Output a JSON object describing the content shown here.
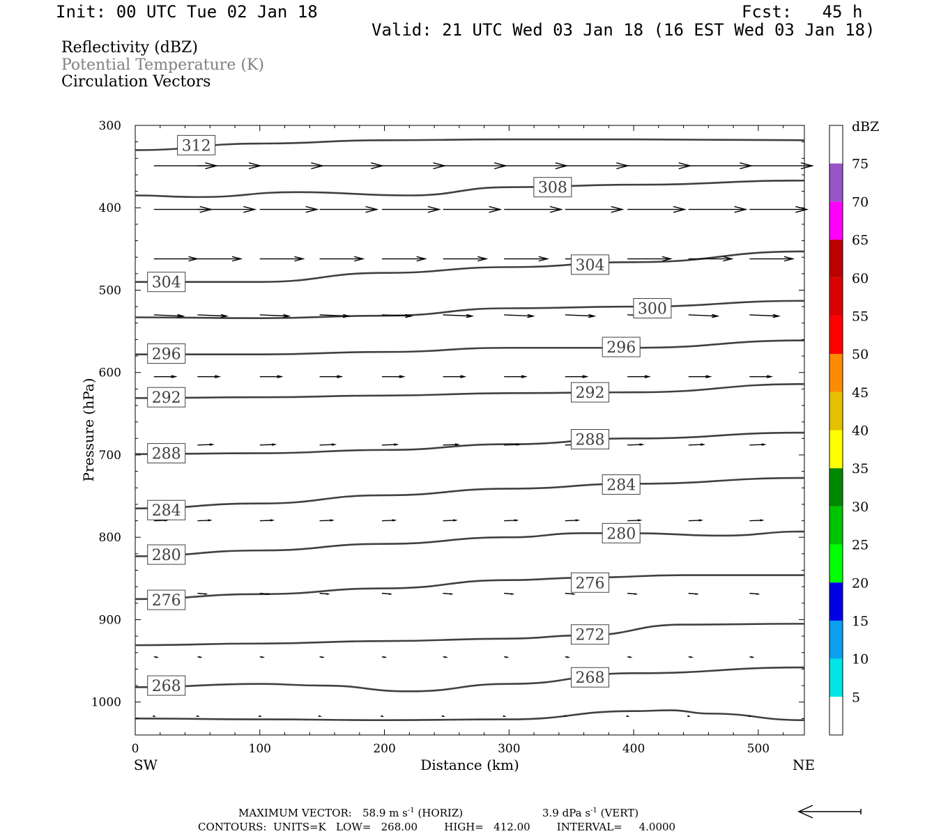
{
  "header": {
    "init": "Init: 00 UTC Tue 02 Jan 18",
    "fcst": "Fcst:   45 h",
    "valid": "Valid: 21 UTC Wed 03 Jan 18 (16 EST Wed 03 Jan 18)"
  },
  "legend_fields": [
    {
      "label": "Reflectivity (dBZ)",
      "color": "#000000"
    },
    {
      "label": "Potential Temperature (K)",
      "color": "#808080"
    },
    {
      "label": "Circulation Vectors",
      "color": "#000000"
    }
  ],
  "chart_data": {
    "type": "cross-section",
    "xlabel": "Distance (km)",
    "ylabel": "Pressure (hPa)",
    "x_left_label": "SW",
    "x_right_label": "NE",
    "xlim": [
      0,
      537
    ],
    "ylim": [
      300,
      1040
    ],
    "x_ticks": [
      0,
      100,
      200,
      300,
      400,
      500
    ],
    "y_ticks": [
      300,
      400,
      500,
      600,
      700,
      800,
      900,
      1000
    ],
    "isentropes": [
      {
        "theta": null,
        "points": [
          [
            0,
            1020
          ],
          [
            100,
            1021
          ],
          [
            200,
            1022
          ],
          [
            300,
            1021
          ],
          [
            400,
            1011
          ],
          [
            430,
            1010
          ],
          [
            460,
            1014
          ],
          [
            537,
            1022
          ]
        ]
      },
      {
        "theta": "268",
        "points": [
          [
            0,
            982
          ],
          [
            100,
            978
          ],
          [
            150,
            980
          ],
          [
            220,
            987
          ],
          [
            300,
            978
          ],
          [
            400,
            965
          ],
          [
            537,
            958
          ]
        ]
      },
      {
        "theta": "272",
        "points": [
          [
            0,
            931
          ],
          [
            100,
            929
          ],
          [
            200,
            926
          ],
          [
            300,
            923
          ],
          [
            360,
            919
          ],
          [
            440,
            906
          ],
          [
            537,
            905
          ]
        ]
      },
      {
        "theta": "276",
        "points": [
          [
            0,
            875
          ],
          [
            100,
            869
          ],
          [
            200,
            862
          ],
          [
            300,
            852
          ],
          [
            360,
            849
          ],
          [
            440,
            846
          ],
          [
            537,
            846
          ]
        ]
      },
      {
        "theta": "280",
        "points": [
          [
            0,
            823
          ],
          [
            100,
            816
          ],
          [
            200,
            808
          ],
          [
            300,
            800
          ],
          [
            360,
            795
          ],
          [
            400,
            795
          ],
          [
            470,
            798
          ],
          [
            537,
            793
          ]
        ]
      },
      {
        "theta": "284",
        "points": [
          [
            0,
            765
          ],
          [
            100,
            759
          ],
          [
            200,
            749
          ],
          [
            300,
            741
          ],
          [
            400,
            735
          ],
          [
            537,
            728
          ]
        ]
      },
      {
        "theta": "288",
        "points": [
          [
            0,
            699
          ],
          [
            100,
            698
          ],
          [
            200,
            694
          ],
          [
            300,
            687
          ],
          [
            400,
            680
          ],
          [
            537,
            673
          ]
        ]
      },
      {
        "theta": "292",
        "points": [
          [
            0,
            631
          ],
          [
            100,
            630
          ],
          [
            200,
            628
          ],
          [
            300,
            625
          ],
          [
            400,
            624
          ],
          [
            537,
            614
          ]
        ]
      },
      {
        "theta": "296",
        "points": [
          [
            0,
            578
          ],
          [
            100,
            578
          ],
          [
            200,
            575
          ],
          [
            300,
            570
          ],
          [
            400,
            570
          ],
          [
            537,
            561
          ]
        ]
      },
      {
        "theta": "300",
        "points": [
          [
            0,
            533
          ],
          [
            100,
            534
          ],
          [
            200,
            531
          ],
          [
            300,
            522
          ],
          [
            400,
            520
          ],
          [
            537,
            513
          ]
        ]
      },
      {
        "theta": "304",
        "points": [
          [
            0,
            490
          ],
          [
            100,
            490
          ],
          [
            200,
            479
          ],
          [
            300,
            472
          ],
          [
            400,
            466
          ],
          [
            537,
            453
          ]
        ]
      },
      {
        "theta": "308",
        "points": [
          [
            0,
            385
          ],
          [
            50,
            387
          ],
          [
            130,
            381
          ],
          [
            220,
            385
          ],
          [
            300,
            375
          ],
          [
            400,
            372
          ],
          [
            537,
            367
          ]
        ]
      },
      {
        "theta": "312",
        "points": [
          [
            0,
            330
          ],
          [
            100,
            322
          ],
          [
            200,
            318
          ],
          [
            300,
            317
          ],
          [
            400,
            317
          ],
          [
            537,
            318
          ]
        ]
      }
    ],
    "isentrope_labels": [
      {
        "text": "312",
        "x": 49,
        "p": 324
      },
      {
        "text": "308",
        "x": 335,
        "p": 375
      },
      {
        "text": "304",
        "x": 25,
        "p": 490
      },
      {
        "text": "304",
        "x": 365,
        "p": 469
      },
      {
        "text": "300",
        "x": 415,
        "p": 522
      },
      {
        "text": "296",
        "x": 25,
        "p": 577
      },
      {
        "text": "296",
        "x": 390,
        "p": 569
      },
      {
        "text": "292",
        "x": 25,
        "p": 630
      },
      {
        "text": "292",
        "x": 365,
        "p": 624
      },
      {
        "text": "288",
        "x": 25,
        "p": 698
      },
      {
        "text": "288",
        "x": 365,
        "p": 681
      },
      {
        "text": "284",
        "x": 25,
        "p": 767
      },
      {
        "text": "284",
        "x": 390,
        "p": 736
      },
      {
        "text": "280",
        "x": 25,
        "p": 821
      },
      {
        "text": "280",
        "x": 390,
        "p": 795
      },
      {
        "text": "276",
        "x": 25,
        "p": 876
      },
      {
        "text": "276",
        "x": 365,
        "p": 855
      },
      {
        "text": "272",
        "x": 365,
        "p": 918
      },
      {
        "text": "268",
        "x": 25,
        "p": 980
      },
      {
        "text": "268",
        "x": 365,
        "p": 970
      }
    ],
    "vector_rows": [
      {
        "p": 349,
        "u": 58,
        "w": 0.0
      },
      {
        "p": 402,
        "u": 53,
        "w": 0.0
      },
      {
        "p": 462,
        "u": 40,
        "w": 0.0
      },
      {
        "p": 530,
        "u": 27,
        "w": -0.5
      },
      {
        "p": 605,
        "u": 20,
        "w": 0.0
      },
      {
        "p": 688,
        "u": 14,
        "w": 0.2
      },
      {
        "p": 780,
        "u": 12,
        "w": 0.2
      },
      {
        "p": 868,
        "u": 8,
        "w": -0.3
      },
      {
        "p": 945,
        "u": 3,
        "w": -0.2
      },
      {
        "p": 1017,
        "u": 0.5,
        "w": -0.1
      }
    ],
    "vector_x": [
      15,
      50,
      100,
      148,
      198,
      247,
      296,
      345,
      395,
      444,
      493
    ],
    "colorbar": {
      "title": "dBZ",
      "levels": [
        "5",
        "10",
        "15",
        "20",
        "25",
        "30",
        "35",
        "40",
        "45",
        "50",
        "55",
        "60",
        "65",
        "70",
        "75"
      ],
      "colors": [
        "#ffffff",
        "#00e5e5",
        "#0aa0ee",
        "#0000e6",
        "#00ff00",
        "#00c400",
        "#008800",
        "#ffff00",
        "#e5bf00",
        "#ff8c00",
        "#ff0000",
        "#dd0000",
        "#bb0000",
        "#ff00ff",
        "#9855c8",
        "#ffffff"
      ]
    }
  },
  "footer": {
    "max_vector_label": "MAXIMUM VECTOR:",
    "max_vector_horiz": "58.9 m s",
    "horiz_tag": "(HORIZ)",
    "max_vector_vert": "3.9 dPa s",
    "vert_tag": "(VERT)",
    "exponent": "-1",
    "contours": "CONTOURS:  UNITS=K   LOW=   268.00        HIGH=   412.00        INTERVAL=     4.0000"
  }
}
